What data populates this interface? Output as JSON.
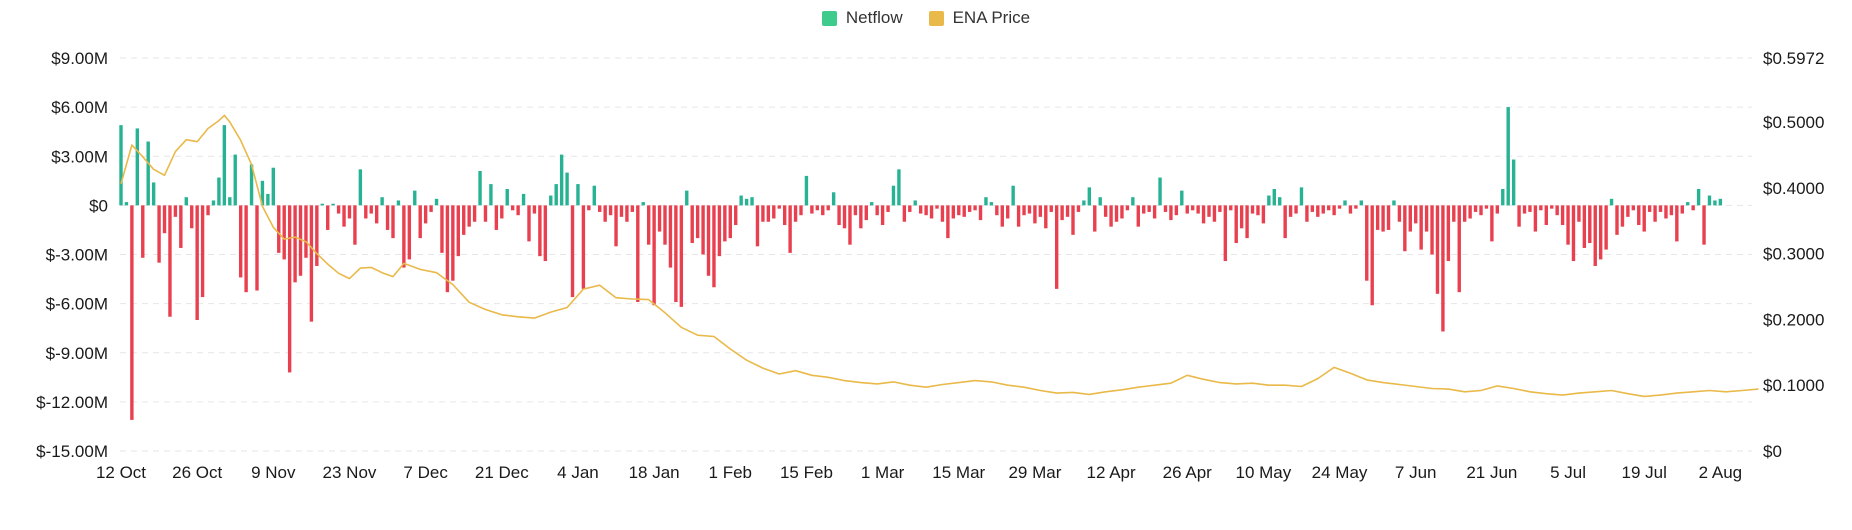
{
  "chart_data": {
    "type": "bar",
    "legend": {
      "position": "top-center",
      "items": [
        {
          "label": "Netflow",
          "color": "#3ECB8C"
        },
        {
          "label": "ENA Price",
          "color": "#E9B949"
        }
      ]
    },
    "colors": {
      "positive": "#27B393",
      "negative": "#E8404F",
      "price_line": "#E9B949",
      "grid": "#E6E6E6"
    },
    "grid": true,
    "x_tick_labels": [
      "12 Oct",
      "26 Oct",
      "9 Nov",
      "23 Nov",
      "7 Dec",
      "21 Dec",
      "4 Jan",
      "18 Jan",
      "1 Feb",
      "15 Feb",
      "1 Mar",
      "15 Mar",
      "29 Mar",
      "12 Apr",
      "26 Apr",
      "10 May",
      "24 May",
      "7 Jun",
      "21 Jun",
      "5 Jul",
      "19 Jul",
      "2 Aug"
    ],
    "y_left": {
      "label": "",
      "ylim": [
        -15,
        9
      ],
      "unit": "M USD",
      "tick_labels": [
        "$9.00M",
        "$6.00M",
        "$3.00M",
        "$0",
        "$-3.00M",
        "$-6.00M",
        "$-9.00M",
        "$-12.00M",
        "$-15.00M"
      ]
    },
    "y_right": {
      "label": "",
      "ylim": [
        0,
        0.5972
      ],
      "tick_labels": [
        "$0.5972",
        "$0.5000",
        "$0.4000",
        "$0.3000",
        "$0.2000",
        "$0.1000",
        "$0"
      ]
    },
    "series": [
      {
        "name": "Netflow",
        "type": "bar",
        "x_start": "12 Oct",
        "step_days": 1,
        "values": [
          4.9,
          0.2,
          -13.1,
          4.7,
          -3.2,
          3.9,
          1.4,
          -3.5,
          -1.7,
          -6.8,
          -0.7,
          -2.6,
          0.5,
          -1.4,
          -7.0,
          -5.6,
          -0.6,
          0.3,
          1.7,
          4.9,
          0.5,
          3.1,
          -4.4,
          -5.3,
          2.5,
          -5.2,
          1.5,
          0.7,
          2.3,
          -2.9,
          -3.3,
          -10.2,
          -4.7,
          -4.3,
          -3.2,
          -7.1,
          -3.7,
          0.1,
          -1.5,
          0.1,
          -0.5,
          -1.3,
          -0.8,
          -2.4,
          2.2,
          -0.8,
          -0.5,
          -1.1,
          0.5,
          -1.5,
          -2.0,
          0.3,
          -3.8,
          -3.3,
          0.9,
          -2.0,
          -1.1,
          -0.4,
          0.4,
          -2.9,
          -5.3,
          -4.6,
          -3.1,
          -1.8,
          -1.3,
          -1.0,
          2.1,
          -1.0,
          1.3,
          -1.5,
          -0.8,
          1.0,
          -0.3,
          -0.6,
          0.7,
          -2.2,
          -0.5,
          -3.1,
          -3.4,
          0.6,
          1.3,
          3.1,
          2.0,
          -5.6,
          1.3,
          -5.1,
          -0.3,
          1.2,
          -0.4,
          -1.0,
          -0.6,
          -2.5,
          -0.7,
          -1.0,
          -0.4,
          -5.9,
          0.2,
          -2.4,
          -6.1,
          -1.6,
          -2.4,
          -3.8,
          -5.9,
          -6.2,
          0.9,
          -2.3,
          -2.0,
          -3.0,
          -4.3,
          -5.0,
          -3.1,
          -2.2,
          -2.0,
          -1.2,
          0.6,
          0.4,
          0.5,
          -2.5,
          -1.0,
          -1.0,
          -0.8,
          -0.2,
          -1.2,
          -2.9,
          -1.0,
          -0.6,
          1.8,
          -0.5,
          -0.3,
          -0.6,
          -0.3,
          0.8,
          -1.2,
          -1.4,
          -2.4,
          -0.6,
          -1.4,
          -0.9,
          0.2,
          -0.6,
          -1.2,
          -0.4,
          1.2,
          2.2,
          -1.0,
          -0.4,
          0.3,
          -0.5,
          -0.6,
          -0.8,
          -0.2,
          -1.0,
          -2.0,
          -0.8,
          -0.6,
          -0.7,
          -0.4,
          -0.3,
          -0.9,
          0.5,
          0.2,
          -0.6,
          -1.3,
          -0.8,
          1.2,
          -1.3,
          -0.6,
          -0.5,
          -1.1,
          -0.7,
          -1.4,
          -0.4,
          -5.1,
          -0.9,
          -0.7,
          -1.8,
          -0.4,
          0.3,
          1.1,
          -1.6,
          0.5,
          -0.7,
          -1.3,
          -1.0,
          -0.8,
          -0.3,
          0.5,
          -1.3,
          -0.5,
          -0.4,
          -0.8,
          1.7,
          -0.4,
          -0.9,
          -0.6,
          0.9,
          -0.5,
          -0.3,
          -0.5,
          -1.1,
          -0.7,
          -1.0,
          -0.4,
          -3.4,
          -0.3,
          -2.3,
          -1.4,
          -2.0,
          -0.5,
          -0.6,
          -1.1,
          0.6,
          1.0,
          0.5,
          -2.0,
          -0.7,
          -0.5,
          1.1,
          -1.0,
          -0.4,
          -0.7,
          -0.5,
          -0.3,
          -0.6,
          -0.2,
          0.3,
          -0.5,
          -0.2,
          0.3,
          -4.6,
          -6.1,
          -1.5,
          -1.6,
          -1.5,
          0.3,
          -1.0,
          -2.8,
          -1.6,
          -1.1,
          -2.7,
          -1.6,
          -3.0,
          -5.4,
          -7.7,
          -3.4,
          -1.0,
          -5.3,
          -1.0,
          -0.8,
          -0.4,
          -0.6,
          -0.2,
          -2.2,
          -0.5,
          1.0,
          6.0,
          2.8,
          -1.3,
          -0.5,
          -0.4,
          -1.6,
          -0.3,
          -1.2,
          -0.2,
          -0.6,
          -1.2,
          -2.4,
          -3.4,
          -1.0,
          -2.6,
          -2.3,
          -3.7,
          -3.3,
          -2.7,
          0.4,
          -1.8,
          -1.3,
          -0.7,
          -0.3,
          -1.2,
          -1.6,
          -0.4,
          -1.0,
          -0.4,
          -0.8,
          -0.6,
          -2.2,
          -0.5,
          0.2,
          -0.3,
          1.0,
          -2.4,
          0.6,
          0.3,
          0.4
        ]
      },
      {
        "name": "ENA Price",
        "type": "line",
        "axis": "right",
        "x_day_offsets": [
          0,
          2,
          4,
          6,
          8,
          10,
          12,
          14,
          16,
          18,
          19,
          20,
          22,
          24,
          26,
          28,
          30,
          32,
          34,
          36,
          38,
          40,
          42,
          44,
          46,
          48,
          50,
          52,
          55,
          58,
          61,
          64,
          67,
          70,
          73,
          76,
          79,
          82,
          85,
          88,
          91,
          94,
          97,
          100,
          103,
          106,
          109,
          112,
          115,
          118,
          121,
          124,
          127,
          130,
          133,
          136,
          139,
          142,
          145,
          148,
          151,
          154,
          157,
          160,
          163,
          166,
          169,
          172,
          175,
          178,
          181,
          184,
          187,
          190,
          193,
          196,
          199,
          202,
          205,
          208,
          211,
          214,
          217,
          220,
          223,
          226,
          229,
          232,
          235,
          238,
          241,
          244,
          247,
          250,
          253,
          256,
          259,
          262,
          265,
          268,
          271,
          274,
          277,
          280,
          283,
          286,
          289,
          292,
          295,
          298,
          301
        ],
        "values": [
          0.406,
          0.465,
          0.447,
          0.428,
          0.419,
          0.455,
          0.473,
          0.47,
          0.49,
          0.502,
          0.51,
          0.5,
          0.472,
          0.435,
          0.372,
          0.34,
          0.322,
          0.325,
          0.318,
          0.3,
          0.284,
          0.27,
          0.262,
          0.278,
          0.279,
          0.271,
          0.265,
          0.285,
          0.276,
          0.271,
          0.253,
          0.226,
          0.215,
          0.207,
          0.204,
          0.202,
          0.211,
          0.218,
          0.246,
          0.252,
          0.233,
          0.231,
          0.23,
          0.21,
          0.188,
          0.176,
          0.174,
          0.155,
          0.138,
          0.126,
          0.117,
          0.122,
          0.115,
          0.112,
          0.107,
          0.104,
          0.102,
          0.105,
          0.1,
          0.097,
          0.101,
          0.104,
          0.107,
          0.105,
          0.1,
          0.097,
          0.092,
          0.088,
          0.089,
          0.086,
          0.09,
          0.093,
          0.097,
          0.1,
          0.103,
          0.115,
          0.109,
          0.104,
          0.102,
          0.103,
          0.1,
          0.1,
          0.098,
          0.11,
          0.127,
          0.118,
          0.108,
          0.104,
          0.101,
          0.098,
          0.095,
          0.094,
          0.09,
          0.092,
          0.099,
          0.095,
          0.09,
          0.087,
          0.085,
          0.088,
          0.09,
          0.092,
          0.087,
          0.083,
          0.085,
          0.088,
          0.09,
          0.092,
          0.09,
          0.092,
          0.094
        ]
      }
    ]
  }
}
